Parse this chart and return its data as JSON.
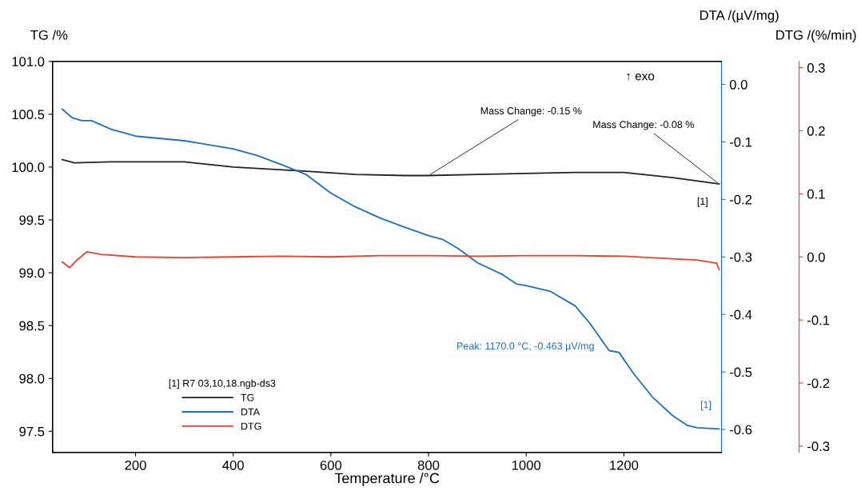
{
  "chart_data": {
    "type": "line",
    "xlabel": "Temperature /°C",
    "ylabel": "TG /%",
    "y2label": "DTA /(µV/mg)",
    "y3label": "DTG /(%/min)",
    "legend_title": "[1] R7 03,10,18.ngb-ds3",
    "legend": "bottom left",
    "grid": false,
    "xlim": [
      30,
      1400
    ],
    "xticks": [
      200,
      400,
      600,
      800,
      1000,
      1200
    ],
    "ylim": [
      97.3,
      101.0
    ],
    "yticks": [
      97.5,
      {
        "value": 98,
        "label": "98.0"
      },
      98.5,
      {
        "value": 99,
        "label": "99.0"
      },
      99.5,
      {
        "value": 100,
        "label": "100.0"
      },
      100.5,
      {
        "value": 101,
        "label": "101.0"
      }
    ],
    "y2lim": [
      -0.64,
      0.04
    ],
    "y2ticks": [
      -0.6,
      -0.5,
      -0.4,
      -0.3,
      -0.2,
      -0.1,
      {
        "value": 0,
        "label": "0.0"
      }
    ],
    "y3lim": [
      -0.31,
      0.31
    ],
    "y3ticks": [
      -0.3,
      -0.2,
      -0.1,
      {
        "value": 0,
        "label": "0.0"
      },
      0.1,
      0.2,
      0.3
    ],
    "series": [
      {
        "name": "TG",
        "color": "#222222",
        "x": [
          50,
          75,
          150,
          300,
          400,
          550,
          650,
          750,
          800,
          900,
          1000,
          1100,
          1200,
          1300,
          1395
        ],
        "values": [
          100.07,
          100.04,
          100.05,
          100.05,
          100.0,
          99.96,
          99.93,
          99.92,
          99.92,
          99.93,
          99.94,
          99.95,
          99.95,
          99.9,
          99.84
        ]
      },
      {
        "name": "DTA",
        "color": "#1f6fbf",
        "axis": "y2",
        "x": [
          50,
          70,
          90,
          110,
          150,
          200,
          300,
          350,
          400,
          450,
          500,
          550,
          600,
          650,
          700,
          750,
          800,
          830,
          860,
          900,
          950,
          980,
          1000,
          1050,
          1100,
          1130,
          1170,
          1190,
          1220,
          1260,
          1300,
          1330,
          1350,
          1395
        ],
        "values": [
          -0.043,
          -0.058,
          -0.063,
          -0.063,
          -0.078,
          -0.09,
          -0.098,
          -0.105,
          -0.112,
          -0.124,
          -0.14,
          -0.157,
          -0.189,
          -0.213,
          -0.232,
          -0.248,
          -0.263,
          -0.27,
          -0.285,
          -0.31,
          -0.33,
          -0.347,
          -0.35,
          -0.36,
          -0.385,
          -0.415,
          -0.463,
          -0.466,
          -0.503,
          -0.545,
          -0.576,
          -0.593,
          -0.597,
          -0.599
        ]
      },
      {
        "name": "DTG",
        "color": "#e8432f",
        "axis": "y3",
        "x": [
          50,
          65,
          80,
          100,
          130,
          200,
          300,
          400,
          500,
          600,
          700,
          800,
          900,
          1000,
          1100,
          1200,
          1300,
          1350,
          1390,
          1395
        ],
        "values": [
          -0.008,
          -0.017,
          -0.005,
          0.008,
          0.004,
          0.0,
          -0.001,
          0.0,
          0.001,
          0.0,
          0.002,
          0.002,
          0.001,
          0.002,
          0.002,
          0.001,
          -0.003,
          -0.005,
          -0.01,
          -0.02
        ]
      }
    ],
    "annotations": [
      {
        "text": "Mass Change: -0.15 %",
        "x": 800,
        "y": 99.92
      },
      {
        "text": "Mass Change: -0.08 %",
        "x": 1395,
        "y": 99.84
      },
      "↑ exo",
      "Peak: 1170.0 °C, -0.463 µV/mg",
      "[1]",
      "[1]"
    ]
  }
}
